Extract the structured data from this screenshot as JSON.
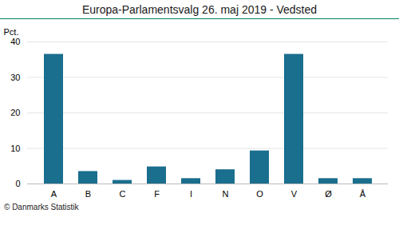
{
  "chart_data": {
    "type": "bar",
    "title": "Europa-Parlamentsvalg 26. maj 2019 - Vedsted",
    "categories": [
      "A",
      "B",
      "C",
      "F",
      "I",
      "N",
      "O",
      "V",
      "Ø",
      "Å"
    ],
    "values": [
      36.5,
      3.5,
      1.0,
      4.8,
      1.5,
      4.0,
      9.3,
      36.5,
      1.5,
      1.5
    ],
    "color": "#1a6e8e",
    "ylim": [
      0,
      40
    ],
    "yticks": [
      0,
      10,
      20,
      30,
      40
    ],
    "grid": true,
    "ylabel": "Pct.",
    "caption": "© Danmarks Statistik"
  }
}
